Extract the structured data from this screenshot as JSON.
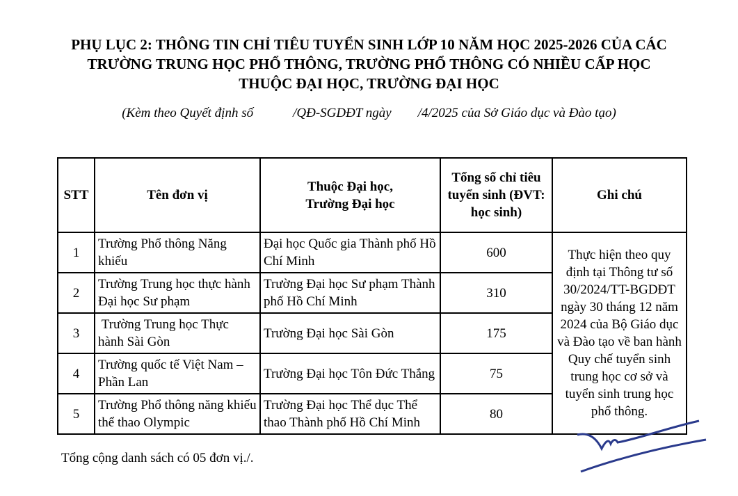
{
  "title": {
    "line1": "PHỤ LỤC 2: THÔNG TIN CHỈ TIÊU TUYỂN SINH LỚP 10 NĂM HỌC 2025-2026 CỦA CÁC",
    "line2": "TRƯỜNG TRUNG HỌC PHỔ THÔNG, TRƯỜNG PHỔ THÔNG CÓ NHIỀU CẤP HỌC",
    "line3": "THUỘC ĐẠI HỌC, TRƯỜNG ĐẠI HỌC"
  },
  "subtitle": "(Kèm theo Quyết định số            /QĐ-SGDĐT ngày        /4/2025 của Sở Giáo dục và Đào tạo)",
  "table": {
    "headers": [
      "STT",
      "Tên đơn vị",
      "Thuộc Đại học, Trường Đại học",
      "Tổng số chỉ tiêu tuyển sinh (ĐVT: học sinh)",
      "Ghi chú"
    ],
    "rows": [
      {
        "stt": "1",
        "name": "Trường Phổ thông Năng khiếu",
        "university": "Đại học Quốc gia Thành phố Hồ Chí Minh",
        "quota": "600"
      },
      {
        "stt": "2",
        "name": "Trường Trung học thực hành Đại học Sư phạm",
        "university": "Trường Đại học Sư phạm Thành phố Hồ Chí Minh",
        "quota": "310"
      },
      {
        "stt": "3",
        "name": " Trường Trung học Thực hành Sài Gòn",
        "university": "Trường Đại học Sài Gòn",
        "quota": "175"
      },
      {
        "stt": "4",
        "name": "Trường quốc tế Việt Nam – Phần Lan",
        "university": "Trường Đại học Tôn Đức Thắng",
        "quota": "75"
      },
      {
        "stt": "5",
        "name": "Trường Phổ thông năng khiếu thể thao Olympic",
        "university": "Trường Đại học Thể dục Thể thao Thành phố Hồ Chí Minh",
        "quota": "80"
      }
    ],
    "note": "Thực hiện theo quy định tại Thông tư số 30/2024/TT-BGDĐT ngày 30 tháng 12 năm 2024 của Bộ Giáo dục và Đào tạo về ban hành Quy chế tuyển sinh trung học cơ sở và tuyển sinh trung học phổ thông."
  },
  "footer": "Tổng cộng danh sách có 05 đơn vị./.",
  "signature_color": "#2a3a8c"
}
